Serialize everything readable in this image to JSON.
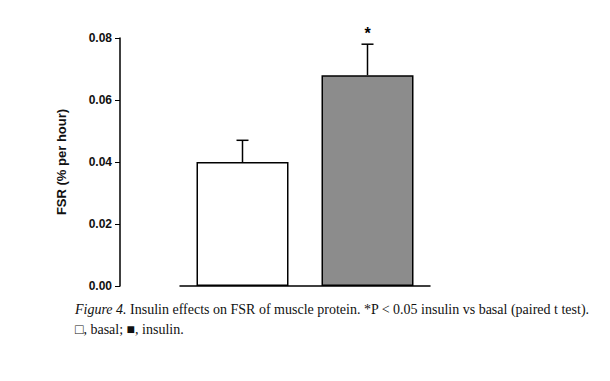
{
  "chart_data": {
    "type": "bar",
    "categories": [
      null,
      null
    ],
    "values": [
      0.04,
      0.068
    ],
    "errors": [
      0.007,
      0.01
    ],
    "colors": [
      "#ffffff",
      "#8c8c8c"
    ],
    "ylabel": "FSR (% per hour)",
    "ylim": [
      0,
      0.08
    ],
    "yticks": [
      {
        "value": 0,
        "label": "0.00"
      },
      {
        "value": 0.02,
        "label": "0.02"
      },
      {
        "value": 0.04,
        "label": "0.04"
      },
      {
        "value": 0.06,
        "label": "0.06"
      },
      {
        "value": 0.08,
        "label": "0.08"
      }
    ],
    "annotations": [
      {
        "index": 1,
        "text": "*"
      }
    ],
    "tick_labels": "y",
    "grid": false,
    "caption_label": "Figure 4.",
    "caption": "Insulin effects on FSR of muscle protein. *P < 0.05 insulin vs basal (paired t test). □, basal; ■, insulin."
  }
}
